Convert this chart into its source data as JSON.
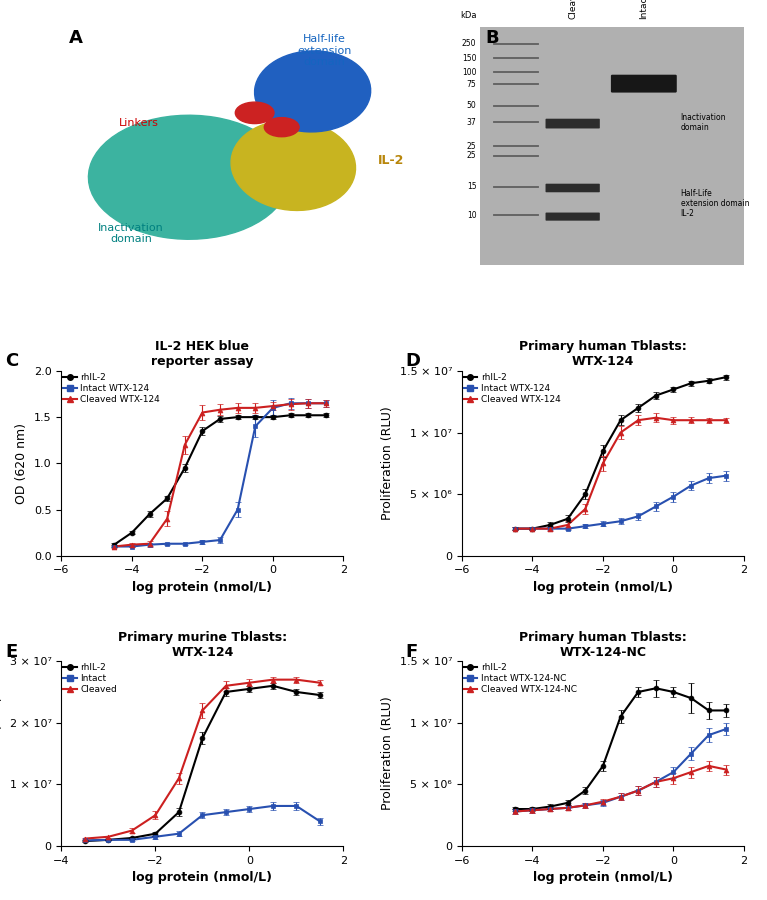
{
  "panel_C": {
    "title": "IL-2 HEK blue\nreporter assay",
    "xlabel": "log protein (nmol/L)",
    "ylabel": "OD (620 nm)",
    "ylim": [
      0,
      2.0
    ],
    "yticks": [
      0.0,
      0.5,
      1.0,
      1.5,
      2.0
    ],
    "xlim": [
      -6,
      2
    ],
    "xticks": [
      -6,
      -4,
      -2,
      0,
      2
    ],
    "rhIL2_x": [
      -4.5,
      -4.0,
      -3.5,
      -3.0,
      -2.5,
      -2.0,
      -1.5,
      -1.0,
      -0.5,
      0.0,
      0.5,
      1.0,
      1.5
    ],
    "rhIL2_y": [
      0.12,
      0.25,
      0.45,
      0.62,
      0.95,
      1.35,
      1.48,
      1.5,
      1.5,
      1.5,
      1.52,
      1.52,
      1.52
    ],
    "rhIL2_err": [
      0.02,
      0.02,
      0.03,
      0.03,
      0.04,
      0.04,
      0.03,
      0.02,
      0.02,
      0.02,
      0.02,
      0.02,
      0.02
    ],
    "intact_x": [
      -4.5,
      -4.0,
      -3.5,
      -3.0,
      -2.5,
      -2.0,
      -1.5,
      -1.0,
      -0.5,
      0.0,
      0.5,
      1.0,
      1.5
    ],
    "intact_y": [
      0.1,
      0.1,
      0.12,
      0.13,
      0.13,
      0.15,
      0.17,
      0.5,
      1.4,
      1.6,
      1.65,
      1.65,
      1.65
    ],
    "intact_err": [
      0.01,
      0.01,
      0.01,
      0.01,
      0.01,
      0.02,
      0.03,
      0.08,
      0.12,
      0.08,
      0.06,
      0.05,
      0.04
    ],
    "cleaved_x": [
      -4.5,
      -4.0,
      -3.5,
      -3.0,
      -2.5,
      -2.0,
      -1.5,
      -1.0,
      -0.5,
      0.0,
      0.5,
      1.0,
      1.5
    ],
    "cleaved_y": [
      0.1,
      0.12,
      0.13,
      0.4,
      1.2,
      1.55,
      1.58,
      1.6,
      1.6,
      1.62,
      1.64,
      1.65,
      1.65
    ],
    "cleaved_err": [
      0.02,
      0.02,
      0.03,
      0.08,
      0.1,
      0.08,
      0.06,
      0.05,
      0.05,
      0.04,
      0.06,
      0.05,
      0.04
    ]
  },
  "panel_D": {
    "title": "Primary human Tblasts:\nWTX-124",
    "xlabel": "log protein (nmol/L)",
    "ylabel": "Proliferation (RLU)",
    "ylim": [
      0,
      15000000.0
    ],
    "yticks": [
      0,
      5000000.0,
      10000000.0,
      15000000.0
    ],
    "ytick_labels": [
      "0",
      "5 × 10⁶",
      "1 × 10⁷",
      "1.5 × 10⁷"
    ],
    "xlim": [
      -6,
      2
    ],
    "xticks": [
      -6,
      -4,
      -2,
      0,
      2
    ],
    "rhIL2_x": [
      -4.5,
      -4.0,
      -3.5,
      -3.0,
      -2.5,
      -2.0,
      -1.5,
      -1.0,
      -0.5,
      0.0,
      0.5,
      1.0,
      1.5
    ],
    "rhIL2_y": [
      2200000,
      2200000,
      2500000,
      3000000,
      5000000,
      8500000,
      11000000,
      12000000,
      13000000,
      13500000,
      14000000,
      14200000,
      14500000
    ],
    "rhIL2_err": [
      100000,
      100000,
      200000,
      300000,
      400000,
      500000,
      400000,
      300000,
      300000,
      200000,
      200000,
      200000,
      200000
    ],
    "intact_x": [
      -4.5,
      -4.0,
      -3.5,
      -3.0,
      -2.5,
      -2.0,
      -1.5,
      -1.0,
      -0.5,
      0.0,
      0.5,
      1.0,
      1.5
    ],
    "intact_y": [
      2200000,
      2200000,
      2200000,
      2200000,
      2400000,
      2600000,
      2800000,
      3200000,
      4000000,
      4800000,
      5700000,
      6300000,
      6500000
    ],
    "intact_err": [
      100000,
      100000,
      100000,
      100000,
      150000,
      200000,
      250000,
      300000,
      350000,
      400000,
      400000,
      400000,
      400000
    ],
    "cleaved_x": [
      -4.5,
      -4.0,
      -3.5,
      -3.0,
      -2.5,
      -2.0,
      -1.5,
      -1.0,
      -0.5,
      0.0,
      0.5,
      1.0,
      1.5
    ],
    "cleaved_y": [
      2200000,
      2200000,
      2200000,
      2500000,
      3800000,
      7500000,
      10000000,
      11000000,
      11200000,
      11000000,
      11000000,
      11000000,
      11000000
    ],
    "cleaved_err": [
      150000,
      150000,
      200000,
      300000,
      400000,
      600000,
      500000,
      400000,
      350000,
      300000,
      250000,
      200000,
      200000
    ]
  },
  "panel_E": {
    "title": "Primary murine Tblasts:\nWTX-124",
    "xlabel": "log protein (nmol/L)",
    "ylabel": "Proliferation (RLU)",
    "ylim": [
      0,
      30000000.0
    ],
    "yticks": [
      0,
      10000000.0,
      20000000.0,
      30000000.0
    ],
    "ytick_labels": [
      "0",
      "1 × 10⁷",
      "2 × 10⁷",
      "3 × 10⁷"
    ],
    "xlim": [
      -4,
      2
    ],
    "xticks": [
      -4,
      -2,
      0,
      2
    ],
    "rhIL2_x": [
      -3.5,
      -3.0,
      -2.5,
      -2.0,
      -1.5,
      -1.0,
      -0.5,
      0.0,
      0.5,
      1.0,
      1.5
    ],
    "rhIL2_y": [
      800000,
      1000000,
      1300000,
      2000000,
      5500000,
      17500000,
      25000000,
      25500000,
      26000000,
      25000000,
      24500000
    ],
    "rhIL2_err": [
      100000,
      100000,
      200000,
      300000,
      600000,
      1000000,
      700000,
      500000,
      500000,
      500000,
      500000
    ],
    "intact_x": [
      -3.5,
      -3.0,
      -2.5,
      -2.0,
      -1.5,
      -1.0,
      -0.5,
      0.0,
      0.5,
      1.0,
      1.5
    ],
    "intact_y": [
      900000,
      1000000,
      1000000,
      1500000,
      2000000,
      5000000,
      5500000,
      6000000,
      6500000,
      6500000,
      4000000
    ],
    "intact_err": [
      100000,
      150000,
      200000,
      300000,
      400000,
      500000,
      500000,
      500000,
      600000,
      600000,
      600000
    ],
    "cleaved_x": [
      -3.5,
      -3.0,
      -2.5,
      -2.0,
      -1.5,
      -1.0,
      -0.5,
      0.0,
      0.5,
      1.0,
      1.5
    ],
    "cleaved_y": [
      1200000,
      1500000,
      2500000,
      5000000,
      11000000,
      22000000,
      26000000,
      26500000,
      27000000,
      27000000,
      26500000
    ],
    "cleaved_err": [
      100000,
      200000,
      400000,
      600000,
      900000,
      1200000,
      800000,
      600000,
      500000,
      500000,
      400000
    ]
  },
  "panel_F": {
    "title": "Primary human Tblasts:\nWTX-124-NC",
    "xlabel": "log protein (nmol/L)",
    "ylabel": "Proliferation (RLU)",
    "ylim": [
      0,
      15000000.0
    ],
    "yticks": [
      0,
      5000000.0,
      10000000.0,
      15000000.0
    ],
    "ytick_labels": [
      "0",
      "5 × 10⁶",
      "1 × 10⁷",
      "1.5 × 10⁷"
    ],
    "xlim": [
      -6,
      2
    ],
    "xticks": [
      -6,
      -4,
      -2,
      0,
      2
    ],
    "rhIL2_x": [
      -4.5,
      -4.0,
      -3.5,
      -3.0,
      -2.5,
      -2.0,
      -1.5,
      -1.0,
      -0.5,
      0.0,
      0.5,
      1.0,
      1.5
    ],
    "rhIL2_y": [
      3000000,
      3000000,
      3200000,
      3500000,
      4500000,
      6500000,
      10500000,
      12500000,
      12800000,
      12500000,
      12000000,
      11000000,
      11000000
    ],
    "rhIL2_err": [
      200000,
      200000,
      200000,
      200000,
      300000,
      400000,
      500000,
      400000,
      700000,
      400000,
      1200000,
      700000,
      500000
    ],
    "intact_x": [
      -4.5,
      -4.0,
      -3.5,
      -3.0,
      -2.5,
      -2.0,
      -1.5,
      -1.0,
      -0.5,
      0.0,
      0.5,
      1.0,
      1.5
    ],
    "intact_y": [
      2800000,
      2900000,
      3000000,
      3100000,
      3300000,
      3500000,
      4000000,
      4500000,
      5200000,
      6000000,
      7500000,
      9000000,
      9500000
    ],
    "intact_err": [
      200000,
      200000,
      200000,
      200000,
      200000,
      250000,
      300000,
      350000,
      400000,
      450000,
      500000,
      600000,
      500000
    ],
    "cleaved_x": [
      -4.5,
      -4.0,
      -3.5,
      -3.0,
      -2.5,
      -2.0,
      -1.5,
      -1.0,
      -0.5,
      0.0,
      0.5,
      1.0,
      1.5
    ],
    "cleaved_y": [
      2800000,
      2900000,
      3000000,
      3100000,
      3300000,
      3600000,
      4000000,
      4500000,
      5200000,
      5500000,
      6000000,
      6500000,
      6200000
    ],
    "cleaved_err": [
      200000,
      200000,
      200000,
      200000,
      200000,
      250000,
      300000,
      400000,
      400000,
      450000,
      450000,
      400000,
      400000
    ]
  },
  "colors": {
    "rhIL2": "#000000",
    "intact": "#2850B0",
    "cleaved": "#CC2020"
  },
  "label_fontsize": 9,
  "title_fontsize": 9,
  "tick_fontsize": 8,
  "panel_A": {
    "label_color_halflife": "#1565C0",
    "label_color_linkers": "#CC0000",
    "label_color_IL2": "#B8860B",
    "label_color_inactivation": "#008080",
    "color_teal": "#3CB3A0",
    "color_yellow": "#C8B420",
    "color_blue": "#2060C0",
    "color_red": "#CC2222"
  },
  "panel_B": {
    "kda_labels": [
      "250",
      "150",
      "100",
      "75",
      "50",
      "37",
      "25",
      "25",
      "15",
      "10"
    ],
    "kda_y": [
      9.3,
      8.7,
      8.1,
      7.6,
      6.7,
      6.0,
      5.0,
      4.6,
      3.3,
      2.1
    ],
    "bg_color": "#B0B0B0"
  }
}
